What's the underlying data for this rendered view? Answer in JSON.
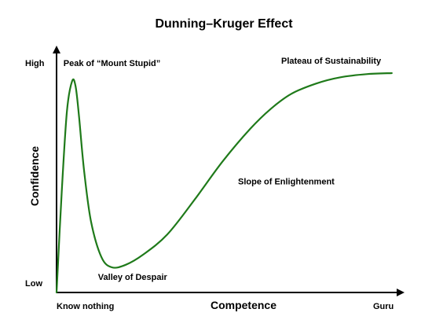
{
  "chart_data": {
    "type": "line",
    "title": "Dunning–Kruger Effect",
    "xlabel": "Competence",
    "ylabel": "Confidence",
    "x_tick_labels": [
      "Know nothing",
      "Guru"
    ],
    "y_tick_labels": [
      "Low",
      "High"
    ],
    "xlim": [
      0,
      100
    ],
    "ylim": [
      0,
      100
    ],
    "grid": false,
    "series_color": "#1f7a1a",
    "series": [
      {
        "x": [
          0,
          1.5,
          3,
          4.5,
          5.5,
          6.5,
          8,
          10,
          13,
          16,
          20,
          25,
          32,
          40,
          48,
          56,
          62,
          68,
          75,
          82,
          90,
          97
        ],
        "y": [
          0,
          40,
          72,
          84,
          82,
          70,
          48,
          28,
          14,
          10,
          11,
          15,
          23,
          37,
          52,
          65,
          73,
          79,
          83,
          85.5,
          86.8,
          87.2
        ]
      }
    ],
    "annotations": [
      {
        "text": "Peak of “Mount Stupid”",
        "x": 2,
        "y": 90
      },
      {
        "text": "Valley of Despair",
        "x": 12,
        "y": 5
      },
      {
        "text": "Slope of Enlightenment",
        "x": 52.5,
        "y": 43
      },
      {
        "text": "Plateau of Sustainability",
        "x": 65,
        "y": 91
      }
    ]
  }
}
